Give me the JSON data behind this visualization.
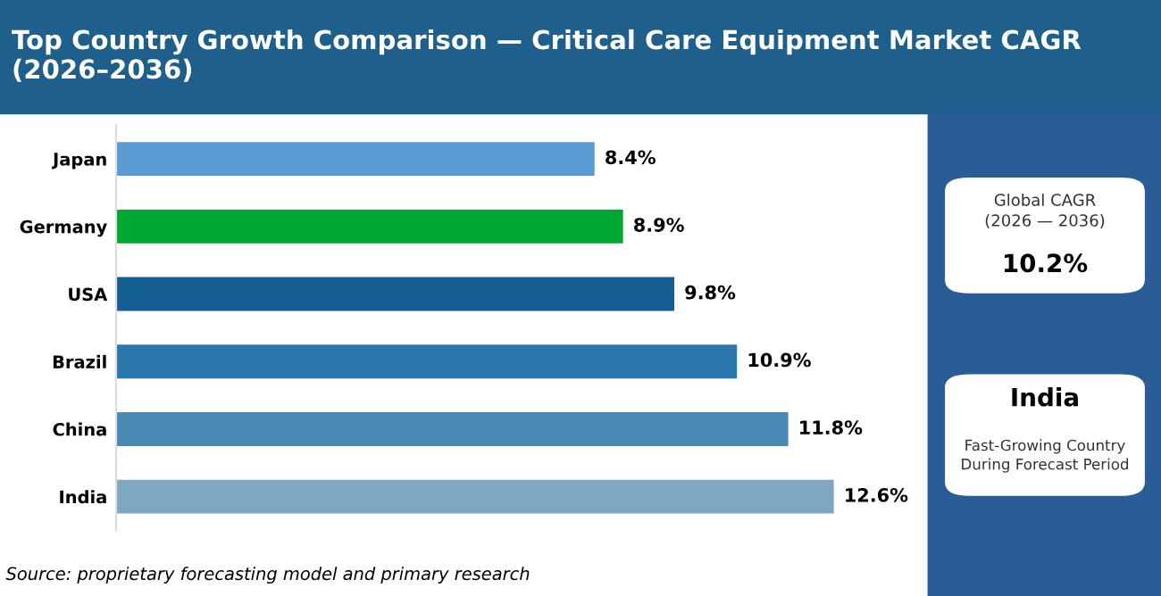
{
  "chart_data": {
    "type": "bar",
    "orientation": "horizontal",
    "title": "Top Country Growth Comparison — Critical Care Equipment Market CAGR (2026–2036)",
    "categories": [
      "Japan",
      "Germany",
      "USA",
      "Brazil",
      "China",
      "India"
    ],
    "values": [
      8.4,
      8.9,
      9.8,
      10.9,
      11.8,
      12.6
    ],
    "colors": [
      "#5b9bd5",
      "#00a832",
      "#155e91",
      "#2a78ad",
      "#4a8ab7",
      "#7ea7c2"
    ],
    "value_labels": [
      "8.4%",
      "8.9%",
      "9.8%",
      "10.9%",
      "11.8%",
      "12.6%"
    ],
    "grid": false,
    "legend": false,
    "annotations": [
      "Global CAGR\n(2026 — 2036)",
      "10.2%",
      "India",
      "Fast-Growing Country\nDuring Forecast Period",
      "Source: proprietary forecasting model and primary research"
    ]
  }
}
